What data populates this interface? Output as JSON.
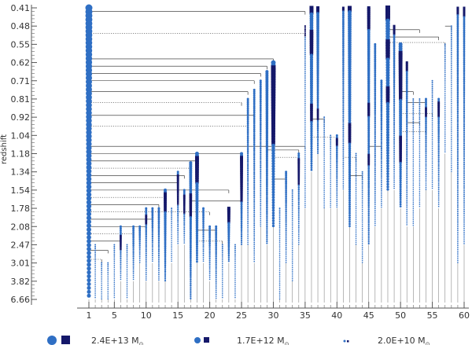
{
  "chart_data": {
    "type": "merger-tree",
    "ylabel": "redshift",
    "y_tick_labels": [
      "0.41",
      "0.48",
      "0.55",
      "0.62",
      "0.71",
      "0.81",
      "0.92",
      "1.04",
      "1.18",
      "1.34",
      "1.54",
      "1.78",
      "2.08",
      "2.47",
      "3.01",
      "3.82",
      "6.66"
    ],
    "x_tick_labels": [
      "1",
      "5",
      "10",
      "15",
      "20",
      "25",
      "30",
      "35",
      "40",
      "45",
      "50",
      "55",
      "60"
    ],
    "x_range": [
      1,
      60
    ],
    "marker_colors": {
      "circle": "#2f6fc4",
      "square": "#15186a",
      "link": "#222222"
    },
    "legend": [
      {
        "mass": "2.4E+13 M",
        "unit_sub": "⊙"
      },
      {
        "mass": "1.7E+12 M",
        "unit_sub": "⊙"
      },
      {
        "mass": "2.0E+10 M",
        "unit_sub": "⊙"
      }
    ],
    "branches": [
      {
        "x": 1,
        "top": 0,
        "bottom": 16,
        "w": 9,
        "sq": []
      },
      {
        "x": 2,
        "top": 13,
        "bottom": 16,
        "w": 2,
        "sq": []
      },
      {
        "x": 3,
        "top": 14,
        "bottom": 16,
        "w": 2,
        "sq": []
      },
      {
        "x": 4,
        "top": 14,
        "bottom": 16,
        "w": 2,
        "sq": []
      },
      {
        "x": 5,
        "top": 13,
        "bottom": 16,
        "w": 2,
        "sq": []
      },
      {
        "x": 6,
        "top": 12,
        "bottom": 15,
        "w": 3,
        "sq": [
          [
            12.5,
            13.3
          ]
        ]
      },
      {
        "x": 7,
        "top": 13,
        "bottom": 16,
        "w": 2,
        "sq": []
      },
      {
        "x": 8,
        "top": 12,
        "bottom": 15,
        "w": 3,
        "sq": []
      },
      {
        "x": 9,
        "top": 12,
        "bottom": 14,
        "w": 3,
        "sq": []
      },
      {
        "x": 10,
        "top": 11,
        "bottom": 15,
        "w": 3,
        "sq": [
          [
            11.4,
            11.9
          ]
        ]
      },
      {
        "x": 11,
        "top": 11,
        "bottom": 14,
        "w": 3,
        "sq": []
      },
      {
        "x": 12,
        "top": 11,
        "bottom": 15,
        "w": 3,
        "sq": []
      },
      {
        "x": 13,
        "top": 10,
        "bottom": 15,
        "w": 4,
        "sq": [
          [
            10.2,
            11.2
          ]
        ]
      },
      {
        "x": 14,
        "top": 11,
        "bottom": 14,
        "w": 2,
        "sq": []
      },
      {
        "x": 15,
        "top": 9,
        "bottom": 13,
        "w": 3,
        "sq": [
          [
            9.2,
            10.8
          ]
        ]
      },
      {
        "x": 16,
        "top": 10,
        "bottom": 13,
        "w": 3,
        "sq": [
          [
            10.3,
            11.3
          ]
        ]
      },
      {
        "x": 17,
        "top": 8.5,
        "bottom": 16,
        "w": 4,
        "sq": [
          [
            10.2,
            11.4
          ]
        ]
      },
      {
        "x": 18,
        "top": 8,
        "bottom": 14,
        "w": 5,
        "sq": [
          [
            8.2,
            9.6
          ]
        ]
      },
      {
        "x": 19,
        "top": 11,
        "bottom": 14,
        "w": 3,
        "sq": []
      },
      {
        "x": 20,
        "top": 12,
        "bottom": 15,
        "w": 3,
        "sq": []
      },
      {
        "x": 21,
        "top": 12,
        "bottom": 16,
        "w": 3,
        "sq": []
      },
      {
        "x": 22,
        "top": 13,
        "bottom": 16,
        "w": 2,
        "sq": []
      },
      {
        "x": 23,
        "top": 11,
        "bottom": 14,
        "w": 4,
        "sq": [
          [
            11,
            11.8
          ]
        ]
      },
      {
        "x": 24,
        "top": 13,
        "bottom": 16,
        "w": 2,
        "sq": []
      },
      {
        "x": 25,
        "top": 8,
        "bottom": 13,
        "w": 4,
        "sq": [
          [
            8.2,
            10.6
          ]
        ]
      },
      {
        "x": 26,
        "top": 5,
        "bottom": 13,
        "w": 3,
        "sq": []
      },
      {
        "x": 27,
        "top": 4.5,
        "bottom": 14,
        "w": 3,
        "sq": []
      },
      {
        "x": 28,
        "top": 4,
        "bottom": 12,
        "w": 3,
        "sq": []
      },
      {
        "x": 29,
        "top": 3.5,
        "bottom": 13,
        "w": 4,
        "sq": []
      },
      {
        "x": 30,
        "top": 3,
        "bottom": 12,
        "w": 6,
        "sq": [
          [
            3.2,
            7.5
          ]
        ]
      },
      {
        "x": 31,
        "top": 11,
        "bottom": 16,
        "w": 2,
        "sq": []
      },
      {
        "x": 32,
        "top": 9,
        "bottom": 14,
        "w": 3,
        "sq": []
      },
      {
        "x": 33,
        "top": 10,
        "bottom": 15,
        "w": 2,
        "sq": []
      },
      {
        "x": 34,
        "top": 8,
        "bottom": 13,
        "w": 3,
        "sq": [
          [
            8.3,
            9.7
          ]
        ]
      },
      {
        "x": 35,
        "top": 1,
        "bottom": 11,
        "w": 2,
        "sq": [
          [
            1,
            1.6
          ]
        ]
      },
      {
        "x": 36,
        "top": 0,
        "bottom": 9,
        "w": 5,
        "sq": [
          [
            0,
            0.3
          ],
          [
            1.2,
            2.5
          ],
          [
            5.3,
            6.2
          ]
        ]
      },
      {
        "x": 37,
        "top": 0,
        "bottom": 8,
        "w": 4,
        "sq": [
          [
            0,
            0.3
          ],
          [
            5.5,
            6.2
          ]
        ]
      },
      {
        "x": 38,
        "top": 6,
        "bottom": 11,
        "w": 2,
        "sq": []
      },
      {
        "x": 39,
        "top": 7,
        "bottom": 11,
        "w": 2,
        "sq": []
      },
      {
        "x": 40,
        "top": 7,
        "bottom": 11,
        "w": 3,
        "sq": [
          [
            7.2,
            7.6
          ]
        ]
      },
      {
        "x": 41,
        "top": 0,
        "bottom": 10,
        "w": 3,
        "sq": [
          [
            0,
            0.2
          ]
        ]
      },
      {
        "x": 42,
        "top": 0,
        "bottom": 12,
        "w": 5,
        "sq": [
          [
            0,
            0.2
          ],
          [
            6.3,
            7.4
          ]
        ]
      },
      {
        "x": 43,
        "top": 8,
        "bottom": 13,
        "w": 2,
        "sq": []
      },
      {
        "x": 44,
        "top": 9,
        "bottom": 14,
        "w": 2,
        "sq": []
      },
      {
        "x": 45,
        "top": 0,
        "bottom": 13,
        "w": 4,
        "sq": [
          [
            0,
            1.2
          ],
          [
            5.2,
            6
          ],
          [
            8,
            8.6
          ]
        ]
      },
      {
        "x": 46,
        "top": 2,
        "bottom": 12,
        "w": 3,
        "sq": []
      },
      {
        "x": 47,
        "top": 4,
        "bottom": 11,
        "w": 3,
        "sq": []
      },
      {
        "x": 48,
        "top": 0,
        "bottom": 10,
        "w": 6,
        "sq": [
          [
            0,
            0.7
          ],
          [
            1.8,
            2.8
          ],
          [
            4.3,
            5.2
          ]
        ]
      },
      {
        "x": 49,
        "top": 1,
        "bottom": 10,
        "w": 3,
        "sq": [
          [
            1,
            1.5
          ]
        ]
      },
      {
        "x": 50,
        "top": 2,
        "bottom": 11,
        "w": 5,
        "sq": [
          [
            2.4,
            5
          ],
          [
            7,
            8.5
          ]
        ]
      },
      {
        "x": 51,
        "top": 3,
        "bottom": 12,
        "w": 3,
        "sq": [
          [
            3,
            3.5
          ]
        ]
      },
      {
        "x": 52,
        "top": 5,
        "bottom": 12,
        "w": 2,
        "sq": []
      },
      {
        "x": 53,
        "top": 5,
        "bottom": 11,
        "w": 2,
        "sq": []
      },
      {
        "x": 54,
        "top": 5,
        "bottom": 10,
        "w": 3,
        "sq": [
          [
            5.5,
            6
          ]
        ]
      },
      {
        "x": 55,
        "top": 4,
        "bottom": 10,
        "w": 2,
        "sq": []
      },
      {
        "x": 56,
        "top": 5,
        "bottom": 11,
        "w": 3,
        "sq": [
          [
            5.2,
            6
          ]
        ]
      },
      {
        "x": 57,
        "top": 2,
        "bottom": 8,
        "w": 2,
        "sq": []
      },
      {
        "x": 58,
        "top": 1,
        "bottom": 9,
        "w": 2,
        "sq": []
      },
      {
        "x": 59,
        "top": 0,
        "bottom": 14,
        "w": 3,
        "sq": [
          [
            0,
            0.4
          ]
        ]
      },
      {
        "x": 60,
        "top": 0,
        "bottom": 13,
        "w": 3,
        "sq": [
          [
            0,
            0.5
          ]
        ]
      }
    ],
    "links": [
      {
        "from": 1,
        "to": 35,
        "z": 0.2,
        "style": "solid"
      },
      {
        "from": 1,
        "to": 35,
        "z": 1.4,
        "style": "dot"
      },
      {
        "from": 1,
        "to": 30,
        "z": 2.8,
        "style": "solid"
      },
      {
        "from": 1,
        "to": 29,
        "z": 3.2,
        "style": "solid"
      },
      {
        "from": 1,
        "to": 28,
        "z": 3.6,
        "style": "solid"
      },
      {
        "from": 1,
        "to": 27,
        "z": 4,
        "style": "solid"
      },
      {
        "from": 1,
        "to": 26,
        "z": 4.6,
        "style": "solid"
      },
      {
        "from": 1,
        "to": 25,
        "z": 5.2,
        "style": "dot"
      },
      {
        "from": 1,
        "to": 27,
        "z": 5.9,
        "style": "solid"
      },
      {
        "from": 1,
        "to": 26,
        "z": 6.5,
        "style": "dot"
      },
      {
        "from": 1,
        "to": 35,
        "z": 7.6,
        "style": "solid"
      },
      {
        "from": 1,
        "to": 25,
        "z": 8,
        "style": "solid"
      },
      {
        "from": 1,
        "to": 18,
        "z": 8.4,
        "style": "solid"
      },
      {
        "from": 1,
        "to": 17,
        "z": 8.8,
        "style": "dot"
      },
      {
        "from": 1,
        "to": 16,
        "z": 9.2,
        "style": "solid"
      },
      {
        "from": 1,
        "to": 15,
        "z": 9.6,
        "style": "solid"
      },
      {
        "from": 1,
        "to": 23,
        "z": 10,
        "style": "solid"
      },
      {
        "from": 1,
        "to": 13,
        "z": 10.4,
        "style": "dot"
      },
      {
        "from": 1,
        "to": 12,
        "z": 10.8,
        "style": "solid"
      },
      {
        "from": 1,
        "to": 20,
        "z": 11.2,
        "style": "dot"
      },
      {
        "from": 1,
        "to": 11,
        "z": 11.6,
        "style": "solid"
      },
      {
        "from": 1,
        "to": 10,
        "z": 12,
        "style": "solid"
      },
      {
        "from": 1,
        "to": 8,
        "z": 12.4,
        "style": "dot"
      },
      {
        "from": 1,
        "to": 6,
        "z": 12.8,
        "style": "solid"
      },
      {
        "from": 1,
        "to": 4,
        "z": 13.3,
        "style": "solid"
      },
      {
        "from": 1,
        "to": 3,
        "z": 13.8,
        "style": "dot"
      },
      {
        "from": 29,
        "to": 34,
        "z": 7.8,
        "style": "solid"
      },
      {
        "from": 30,
        "to": 34,
        "z": 8.2,
        "style": "dot"
      },
      {
        "from": 17,
        "to": 25,
        "z": 10.6,
        "style": "solid"
      },
      {
        "from": 18,
        "to": 21,
        "z": 12.2,
        "style": "solid"
      },
      {
        "from": 18,
        "to": 22,
        "z": 12.8,
        "style": "dot"
      },
      {
        "from": 30,
        "to": 32,
        "z": 9.4,
        "style": "solid"
      },
      {
        "from": 36,
        "to": 38,
        "z": 6.1,
        "style": "solid"
      },
      {
        "from": 36,
        "to": 40,
        "z": 7.1,
        "style": "dot"
      },
      {
        "from": 42,
        "to": 44,
        "z": 9.2,
        "style": "solid"
      },
      {
        "from": 41,
        "to": 43,
        "z": 8.2,
        "style": "dot"
      },
      {
        "from": 48,
        "to": 53,
        "z": 1.2,
        "style": "solid"
      },
      {
        "from": 48,
        "to": 56,
        "z": 1.6,
        "style": "solid"
      },
      {
        "from": 48,
        "to": 57,
        "z": 1.9,
        "style": "dot"
      },
      {
        "from": 50,
        "to": 52,
        "z": 4.6,
        "style": "solid"
      },
      {
        "from": 51,
        "to": 54,
        "z": 5.2,
        "style": "solid"
      },
      {
        "from": 50,
        "to": 55,
        "z": 5.8,
        "style": "dot"
      },
      {
        "from": 51,
        "to": 53,
        "z": 6.3,
        "style": "solid"
      },
      {
        "from": 50,
        "to": 54,
        "z": 6.8,
        "style": "dot"
      },
      {
        "from": 57,
        "to": 58,
        "z": 1,
        "style": "solid"
      },
      {
        "from": 45,
        "to": 47,
        "z": 7.6,
        "style": "solid"
      }
    ]
  }
}
